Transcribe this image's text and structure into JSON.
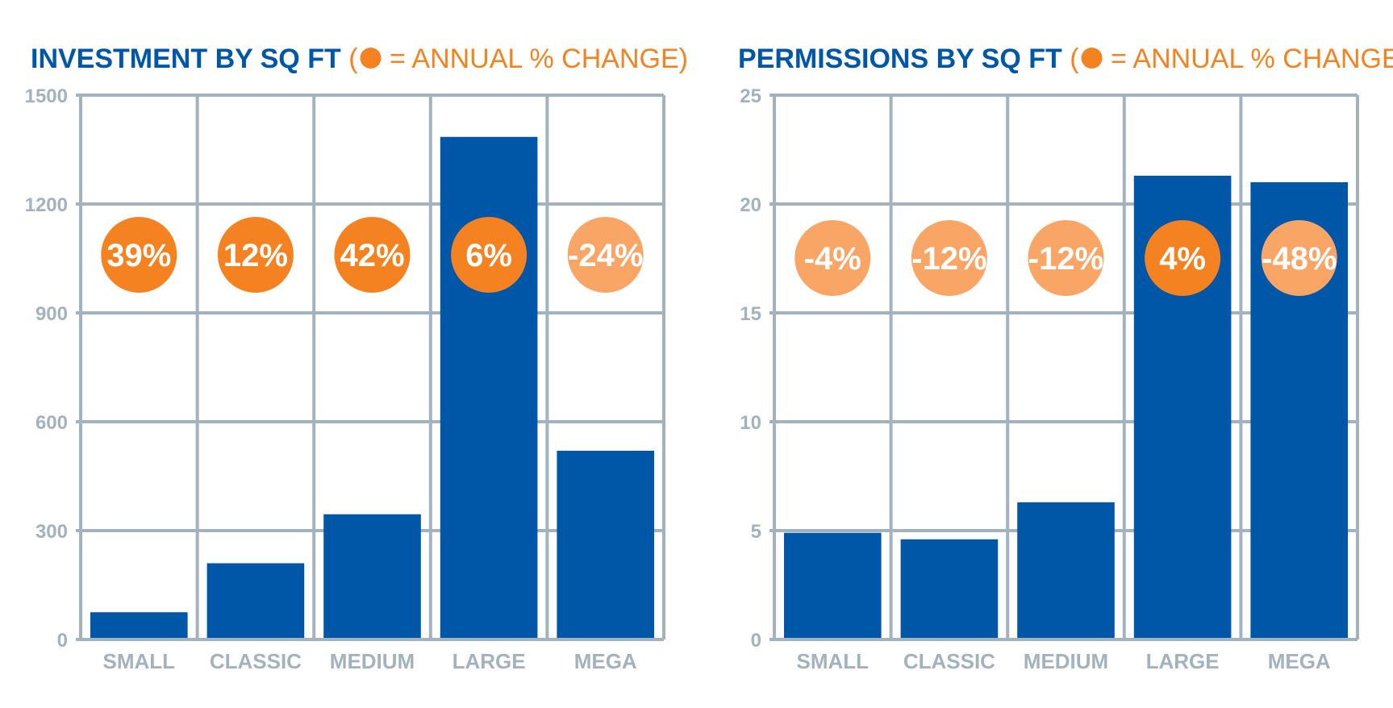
{
  "colors": {
    "bar": "#0057a8",
    "title": "#0057a8",
    "accent": "#f58220",
    "accent_light": "#f8a566",
    "grid": "#a3b2bf",
    "axis_text": "#a3b2bf"
  },
  "chart_data": [
    {
      "type": "bar",
      "title": "INVESTMENT BY SQ FT",
      "title_note_open": "(",
      "title_note_text": " = ANNUAL % CHANGE)",
      "categories": [
        "SMALL",
        "CLASSIC",
        "MEDIUM",
        "LARGE",
        "MEGA"
      ],
      "values": [
        75,
        210,
        345,
        1385,
        520
      ],
      "annual_change": [
        "39%",
        "12%",
        "42%",
        "6%",
        "-24%"
      ],
      "change_positive": [
        true,
        true,
        true,
        true,
        false
      ],
      "ylim": [
        0,
        1500
      ],
      "yticks": [
        "0",
        "300",
        "600",
        "900",
        "1200",
        "1500"
      ],
      "ytick_values": [
        0,
        300,
        600,
        900,
        1200,
        1500
      ],
      "grid": true
    },
    {
      "type": "bar",
      "title": "PERMISSIONS BY SQ FT",
      "title_note_open": "(",
      "title_note_text": " = ANNUAL % CHANGE)",
      "categories": [
        "SMALL",
        "CLASSIC",
        "MEDIUM",
        "LARGE",
        "MEGA"
      ],
      "values": [
        4.9,
        4.6,
        6.3,
        21.3,
        21.0
      ],
      "annual_change": [
        "-4%",
        "-12%",
        "-12%",
        "4%",
        "-48%"
      ],
      "change_positive": [
        false,
        false,
        false,
        true,
        false
      ],
      "ylim": [
        0,
        25
      ],
      "yticks": [
        "0",
        "5",
        "10",
        "15",
        "20",
        "25"
      ],
      "ytick_values": [
        0,
        5,
        10,
        15,
        20,
        25
      ],
      "grid": true
    }
  ]
}
